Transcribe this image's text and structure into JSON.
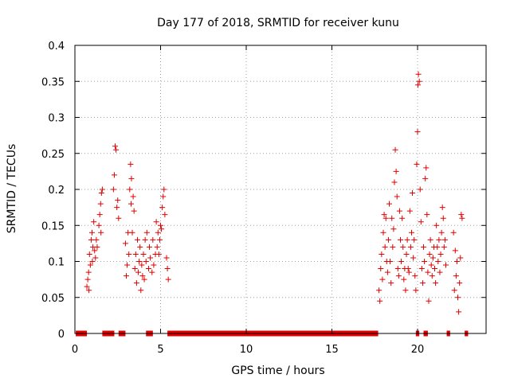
{
  "chart_data": {
    "type": "scatter",
    "title": "Day 177 of 2018, SRMTID for receiver kunu",
    "xlabel": "GPS time / hours",
    "ylabel": "SRMTID / TECUs",
    "xlim": [
      0,
      24
    ],
    "ylim": [
      0,
      0.4
    ],
    "grid": true,
    "marker": "+",
    "series_color": "#e00000",
    "x_ticks": [
      {
        "value": 0,
        "label": "0"
      },
      {
        "value": 5,
        "label": "5"
      },
      {
        "value": 10,
        "label": "10"
      },
      {
        "value": 15,
        "label": "15"
      },
      {
        "value": 20,
        "label": "20"
      }
    ],
    "y_ticks": [
      {
        "value": 0,
        "label": "0"
      },
      {
        "value": 0.05,
        "label": "0.05"
      },
      {
        "value": 0.1,
        "label": "0.1"
      },
      {
        "value": 0.15,
        "label": "0.15"
      },
      {
        "value": 0.2,
        "label": "0.2"
      },
      {
        "value": 0.25,
        "label": "0.25"
      },
      {
        "value": 0.3,
        "label": "0.3"
      },
      {
        "value": 0.35,
        "label": "0.35"
      },
      {
        "value": 0.4,
        "label": "0.4"
      }
    ],
    "series": [
      {
        "name": "SRMTID",
        "points": [
          [
            0.7,
            0.065
          ],
          [
            0.75,
            0.075
          ],
          [
            0.8,
            0.085
          ],
          [
            0.82,
            0.06
          ],
          [
            0.85,
            0.11
          ],
          [
            0.9,
            0.095
          ],
          [
            0.95,
            0.13
          ],
          [
            1.0,
            0.14
          ],
          [
            1.02,
            0.1
          ],
          [
            1.05,
            0.12
          ],
          [
            1.1,
            0.155
          ],
          [
            1.15,
            0.115
          ],
          [
            1.2,
            0.105
          ],
          [
            1.25,
            0.13
          ],
          [
            1.3,
            0.12
          ],
          [
            1.4,
            0.15
          ],
          [
            1.45,
            0.165
          ],
          [
            1.5,
            0.18
          ],
          [
            1.52,
            0.14
          ],
          [
            1.55,
            0.195
          ],
          [
            1.6,
            0.2
          ],
          [
            2.25,
            0.2
          ],
          [
            2.3,
            0.22
          ],
          [
            2.35,
            0.26
          ],
          [
            2.4,
            0.255
          ],
          [
            2.45,
            0.175
          ],
          [
            2.5,
            0.185
          ],
          [
            2.55,
            0.16
          ],
          [
            2.95,
            0.125
          ],
          [
            3.0,
            0.08
          ],
          [
            3.05,
            0.095
          ],
          [
            3.1,
            0.14
          ],
          [
            3.15,
            0.11
          ],
          [
            3.2,
            0.2
          ],
          [
            3.25,
            0.235
          ],
          [
            3.28,
            0.18
          ],
          [
            3.3,
            0.215
          ],
          [
            3.35,
            0.14
          ],
          [
            3.4,
            0.19
          ],
          [
            3.45,
            0.17
          ],
          [
            3.5,
            0.09
          ],
          [
            3.55,
            0.11
          ],
          [
            3.6,
            0.07
          ],
          [
            3.65,
            0.13
          ],
          [
            3.7,
            0.085
          ],
          [
            3.75,
            0.1
          ],
          [
            3.8,
            0.12
          ],
          [
            3.85,
            0.06
          ],
          [
            3.9,
            0.095
          ],
          [
            3.95,
            0.08
          ],
          [
            4.0,
            0.11
          ],
          [
            4.05,
            0.075
          ],
          [
            4.1,
            0.13
          ],
          [
            4.15,
            0.1
          ],
          [
            4.2,
            0.14
          ],
          [
            4.3,
            0.09
          ],
          [
            4.35,
            0.12
          ],
          [
            4.4,
            0.105
          ],
          [
            4.5,
            0.085
          ],
          [
            4.55,
            0.13
          ],
          [
            4.6,
            0.095
          ],
          [
            4.7,
            0.11
          ],
          [
            4.75,
            0.155
          ],
          [
            4.8,
            0.12
          ],
          [
            4.85,
            0.14
          ],
          [
            4.9,
            0.11
          ],
          [
            4.95,
            0.13
          ],
          [
            5.0,
            0.15
          ],
          [
            5.05,
            0.145
          ],
          [
            5.1,
            0.175
          ],
          [
            5.15,
            0.19
          ],
          [
            5.2,
            0.2
          ],
          [
            5.25,
            0.165
          ],
          [
            5.35,
            0.105
          ],
          [
            5.4,
            0.09
          ],
          [
            5.45,
            0.075
          ],
          [
            17.75,
            0.06
          ],
          [
            17.8,
            0.045
          ],
          [
            17.85,
            0.09
          ],
          [
            17.9,
            0.11
          ],
          [
            17.95,
            0.075
          ],
          [
            18.0,
            0.14
          ],
          [
            18.05,
            0.165
          ],
          [
            18.1,
            0.12
          ],
          [
            18.15,
            0.16
          ],
          [
            18.2,
            0.1
          ],
          [
            18.25,
            0.085
          ],
          [
            18.3,
            0.13
          ],
          [
            18.35,
            0.18
          ],
          [
            18.4,
            0.1
          ],
          [
            18.45,
            0.07
          ],
          [
            18.5,
            0.16
          ],
          [
            18.55,
            0.12
          ],
          [
            18.6,
            0.145
          ],
          [
            18.65,
            0.21
          ],
          [
            18.7,
            0.255
          ],
          [
            18.75,
            0.225
          ],
          [
            18.8,
            0.19
          ],
          [
            18.85,
            0.09
          ],
          [
            18.9,
            0.08
          ],
          [
            18.95,
            0.17
          ],
          [
            19.0,
            0.13
          ],
          [
            19.05,
            0.1
          ],
          [
            19.1,
            0.16
          ],
          [
            19.15,
            0.12
          ],
          [
            19.2,
            0.075
          ],
          [
            19.25,
            0.09
          ],
          [
            19.3,
            0.06
          ],
          [
            19.35,
            0.11
          ],
          [
            19.4,
            0.13
          ],
          [
            19.45,
            0.09
          ],
          [
            19.5,
            0.085
          ],
          [
            19.55,
            0.17
          ],
          [
            19.6,
            0.12
          ],
          [
            19.65,
            0.14
          ],
          [
            19.7,
            0.195
          ],
          [
            19.75,
            0.105
          ],
          [
            19.8,
            0.13
          ],
          [
            19.85,
            0.08
          ],
          [
            19.9,
            0.06
          ],
          [
            19.95,
            0.235
          ],
          [
            20.0,
            0.28
          ],
          [
            20.02,
            0.345
          ],
          [
            20.05,
            0.36
          ],
          [
            20.1,
            0.35
          ],
          [
            20.15,
            0.2
          ],
          [
            20.2,
            0.155
          ],
          [
            20.25,
            0.09
          ],
          [
            20.3,
            0.07
          ],
          [
            20.35,
            0.12
          ],
          [
            20.4,
            0.1
          ],
          [
            20.45,
            0.215
          ],
          [
            20.5,
            0.23
          ],
          [
            20.55,
            0.165
          ],
          [
            20.6,
            0.085
          ],
          [
            20.65,
            0.045
          ],
          [
            20.7,
            0.11
          ],
          [
            20.75,
            0.13
          ],
          [
            20.8,
            0.095
          ],
          [
            20.85,
            0.08
          ],
          [
            20.9,
            0.105
          ],
          [
            20.95,
            0.12
          ],
          [
            21.0,
            0.09
          ],
          [
            21.05,
            0.07
          ],
          [
            21.1,
            0.15
          ],
          [
            21.15,
            0.12
          ],
          [
            21.2,
            0.1
          ],
          [
            21.25,
            0.13
          ],
          [
            21.3,
            0.085
          ],
          [
            21.35,
            0.11
          ],
          [
            21.4,
            0.14
          ],
          [
            21.45,
            0.175
          ],
          [
            21.5,
            0.16
          ],
          [
            21.55,
            0.12
          ],
          [
            21.6,
            0.13
          ],
          [
            21.65,
            0.095
          ],
          [
            22.1,
            0.14
          ],
          [
            22.15,
            0.06
          ],
          [
            22.2,
            0.115
          ],
          [
            22.25,
            0.08
          ],
          [
            22.3,
            0.1
          ],
          [
            22.35,
            0.05
          ],
          [
            22.4,
            0.03
          ],
          [
            22.45,
            0.07
          ],
          [
            22.5,
            0.105
          ],
          [
            22.55,
            0.165
          ],
          [
            22.6,
            0.16
          ]
        ],
        "zero_segments": [
          [
            0.05,
            0.7
          ],
          [
            1.6,
            2.3
          ],
          [
            2.55,
            2.95
          ],
          [
            4.15,
            4.55
          ],
          [
            5.4,
            17.7
          ],
          [
            19.9,
            20.1
          ],
          [
            20.35,
            20.6
          ],
          [
            21.7,
            21.9
          ],
          [
            22.75,
            22.95
          ]
        ]
      }
    ]
  }
}
